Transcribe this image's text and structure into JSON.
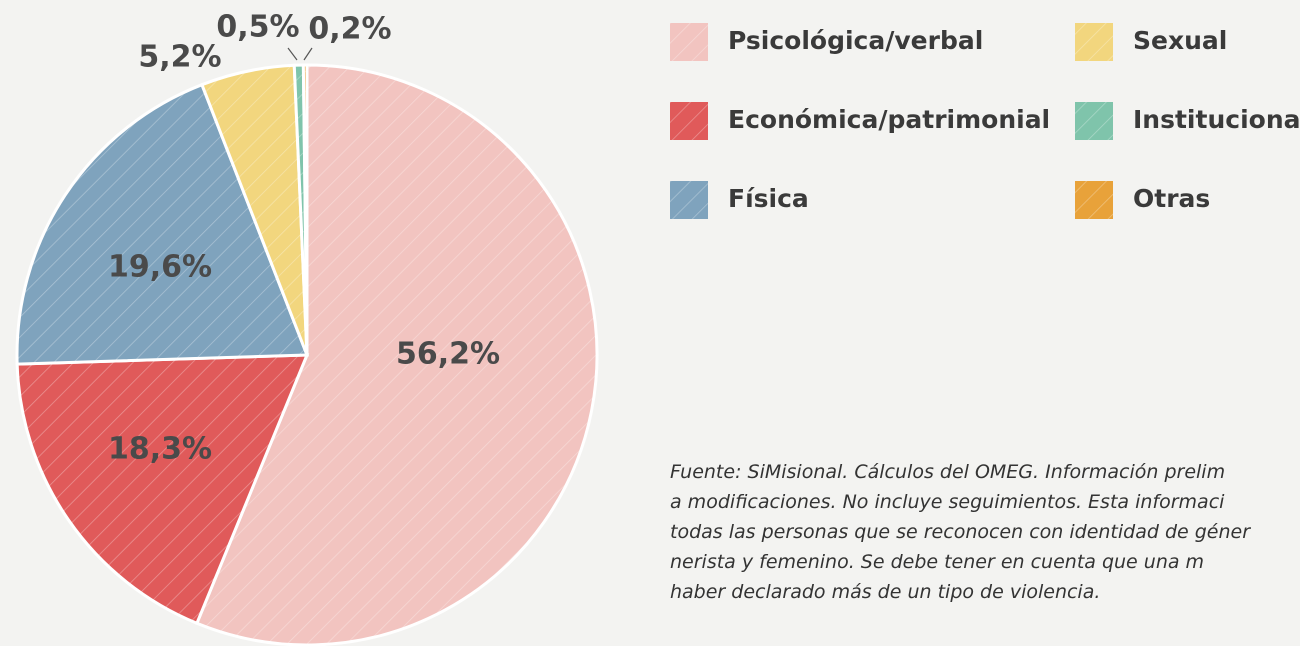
{
  "chart_data": {
    "type": "pie",
    "categories": [
      "Psicológica/verbal",
      "Económica/patrimonial",
      "Física",
      "Sexual",
      "Institucional",
      "Otras"
    ],
    "values": [
      56.2,
      18.3,
      19.6,
      5.2,
      0.5,
      0.2
    ],
    "value_labels": [
      "56,2%",
      "18,3%",
      "19,6%",
      "5,2%",
      "0,5%",
      "0,2%"
    ],
    "colors": [
      "#f2c4c0",
      "#e05a5a",
      "#7fa3bd",
      "#f2d67e",
      "#7fc4ab",
      "#e8a23a"
    ],
    "note": [
      "Fuente: SiMisional. Cálculos del OMEG. Información prelim",
      "a modificaciones. No incluye seguimientos. Esta informaci",
      "todas las personas que se reconocen con identidad de géner",
      "nerista y femenino. Se debe tener en cuenta que una m",
      "haber declarado más de un tipo de violencia."
    ]
  }
}
